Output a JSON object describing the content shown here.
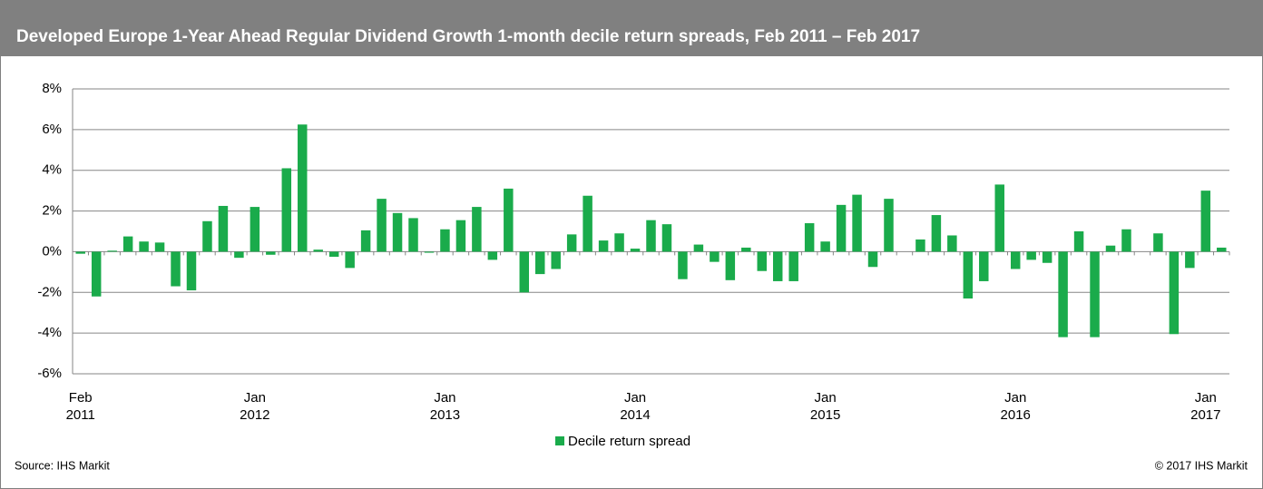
{
  "chart_data": {
    "type": "bar",
    "title": "Developed Europe 1-Year Ahead Regular Dividend Growth 1-month decile return spreads, Feb 2011 – Feb 2017",
    "categories": [
      "Feb 2011",
      null,
      null,
      null,
      null,
      null,
      null,
      null,
      null,
      null,
      null,
      "Jan 2012",
      null,
      null,
      null,
      null,
      null,
      null,
      null,
      null,
      null,
      null,
      null,
      "Jan 2013",
      null,
      null,
      null,
      null,
      null,
      null,
      null,
      null,
      null,
      null,
      null,
      "Jan 2014",
      null,
      null,
      null,
      null,
      null,
      null,
      null,
      null,
      null,
      null,
      null,
      "Jan 2015",
      null,
      null,
      null,
      null,
      null,
      null,
      null,
      null,
      null,
      null,
      null,
      "Jan 2016",
      null,
      null,
      null,
      null,
      null,
      null,
      null,
      null,
      null,
      null,
      null,
      "Jan 2017",
      null
    ],
    "series": [
      {
        "name": "Decile return spread",
        "color": "#1aab4b",
        "values": [
          -0.1,
          -2.2,
          0.05,
          0.75,
          0.5,
          0.45,
          -1.7,
          -1.9,
          1.5,
          2.25,
          -0.3,
          2.2,
          -0.15,
          4.1,
          6.25,
          0.1,
          -0.25,
          -0.8,
          1.05,
          2.6,
          1.9,
          1.65,
          -0.05,
          1.1,
          1.55,
          2.2,
          -0.4,
          3.1,
          -2.0,
          -1.1,
          -0.85,
          0.85,
          2.75,
          0.55,
          0.9,
          0.15,
          1.55,
          1.35,
          -1.35,
          0.35,
          -0.5,
          -1.4,
          0.2,
          -0.95,
          -1.45,
          -1.45,
          1.4,
          0.5,
          2.3,
          2.8,
          -0.75,
          2.6,
          0,
          0.6,
          1.8,
          0.8,
          -2.3,
          -1.45,
          3.3,
          -0.85,
          -0.4,
          -0.55,
          -4.2,
          1.0,
          -4.2,
          0.3,
          1.1,
          0,
          0.9,
          -4.05,
          -0.8,
          3.0,
          0.2
        ]
      }
    ],
    "ylim": [
      -6,
      8
    ],
    "yticks": [
      {
        "value": -6,
        "label": "-6%"
      },
      {
        "value": -4,
        "label": "-4%"
      },
      {
        "value": -2,
        "label": "-2%"
      },
      {
        "value": 0,
        "label": "0%"
      },
      {
        "value": 2,
        "label": "2%"
      },
      {
        "value": 4,
        "label": "4%"
      },
      {
        "value": 6,
        "label": "6%"
      },
      {
        "value": 8,
        "label": "8%"
      }
    ],
    "grid": true,
    "legend": "bottom",
    "source": "Source: IHS Markit",
    "copyright": "© 2017 IHS Markit"
  }
}
